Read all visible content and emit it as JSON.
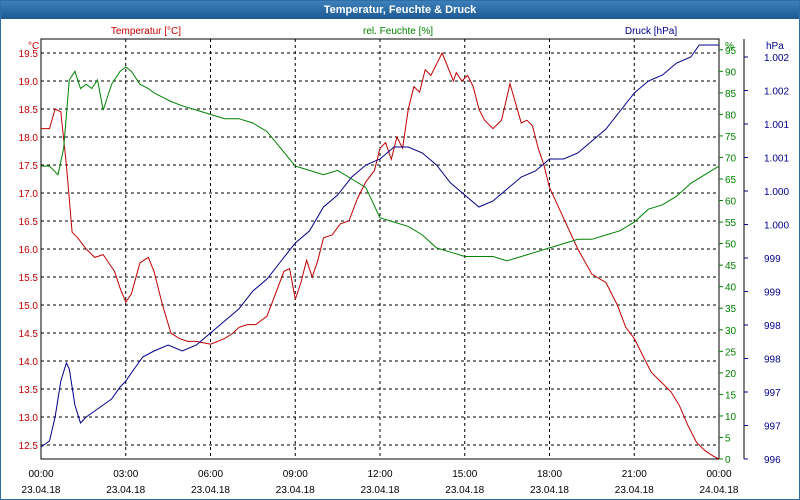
{
  "window": {
    "title": "Temperatur, Feuchte & Druck"
  },
  "colors": {
    "temperature": "#c00000",
    "humidity": "#008000",
    "pressure": "#00008b",
    "grid": "#000000",
    "titlebar": "#1e5a94"
  },
  "chart_data": {
    "type": "line",
    "title": "Temperatur, Feuchte & Druck",
    "grid": true,
    "x_ticks": [
      {
        "time": "00:00",
        "date": "23.04.18"
      },
      {
        "time": "03:00",
        "date": "23.04.18"
      },
      {
        "time": "06:00",
        "date": "23.04.18"
      },
      {
        "time": "09:00",
        "date": "23.04.18"
      },
      {
        "time": "12:00",
        "date": "23.04.18"
      },
      {
        "time": "15:00",
        "date": "23.04.18"
      },
      {
        "time": "18:00",
        "date": "23.04.18"
      },
      {
        "time": "21:00",
        "date": "23.04.18"
      },
      {
        "time": "00:00",
        "date": "24.04.18"
      }
    ],
    "x_range_hours": [
      0,
      24
    ],
    "axes": {
      "temperature": {
        "unit": "°C",
        "label": "Temperatur [°C]",
        "ylim": [
          12.25,
          19.75
        ],
        "ticks": [
          "12.5",
          "13.0",
          "13.5",
          "14.0",
          "14.5",
          "15.0",
          "15.5",
          "16.0",
          "16.5",
          "17.0",
          "17.5",
          "18.0",
          "18.5",
          "19.0",
          "19.5"
        ]
      },
      "humidity": {
        "unit": "%",
        "label": "rel. Feuchte [%]",
        "ylim": [
          0,
          97.5
        ],
        "ticks": [
          "0",
          "5",
          "10",
          "15",
          "20",
          "25",
          "30",
          "35",
          "40",
          "45",
          "50",
          "55",
          "60",
          "65",
          "70",
          "75",
          "80",
          "85",
          "90",
          "95"
        ]
      },
      "pressure": {
        "unit": "hPa",
        "label": "Druck [hPa]",
        "ylim": [
          996,
          1003
        ],
        "ticks": [
          "996",
          "997",
          "997",
          "998",
          "998",
          "999",
          "999",
          "1.000",
          "1.000",
          "1.001",
          "1.001",
          "1.002",
          "1.002"
        ]
      }
    },
    "series": [
      {
        "name": "Temperatur [°C]",
        "axis": "temperature",
        "x": [
          0,
          0.3,
          0.5,
          0.7,
          0.9,
          1.1,
          1.3,
          1.6,
          1.9,
          2.2,
          2.4,
          2.6,
          2.8,
          3.0,
          3.2,
          3.5,
          3.8,
          4.0,
          4.3,
          4.6,
          4.9,
          5.2,
          5.5,
          6.0,
          6.5,
          6.8,
          7.0,
          7.3,
          7.6,
          8.0,
          8.3,
          8.6,
          8.8,
          9.0,
          9.2,
          9.4,
          9.6,
          9.8,
          10.0,
          10.3,
          10.6,
          10.9,
          11.2,
          11.5,
          11.8,
          12.0,
          12.2,
          12.4,
          12.6,
          12.8,
          13.0,
          13.2,
          13.4,
          13.6,
          13.8,
          14.0,
          14.2,
          14.4,
          14.6,
          14.7,
          14.9,
          15.1,
          15.3,
          15.5,
          15.7,
          16.0,
          16.3,
          16.6,
          16.8,
          17.0,
          17.2,
          17.4,
          17.6,
          17.8,
          18.0,
          18.5,
          19.0,
          19.5,
          20.0,
          20.4,
          20.7,
          21.0,
          21.3,
          21.6,
          22.0,
          22.3,
          22.6,
          22.9,
          23.2,
          23.5,
          23.8,
          24.0
        ],
        "y": [
          18.15,
          18.15,
          18.5,
          18.45,
          17.5,
          16.3,
          16.2,
          16.0,
          15.85,
          15.9,
          15.75,
          15.6,
          15.3,
          15.05,
          15.2,
          15.75,
          15.85,
          15.6,
          15.0,
          14.5,
          14.4,
          14.35,
          14.35,
          14.3,
          14.4,
          14.5,
          14.6,
          14.65,
          14.65,
          14.8,
          15.2,
          15.6,
          15.65,
          15.1,
          15.4,
          15.8,
          15.5,
          15.8,
          16.2,
          16.25,
          16.45,
          16.5,
          16.9,
          17.2,
          17.4,
          17.8,
          17.9,
          17.6,
          18.0,
          17.8,
          18.5,
          18.9,
          18.8,
          19.2,
          19.1,
          19.3,
          19.5,
          19.25,
          19.0,
          19.15,
          19.0,
          19.1,
          18.9,
          18.5,
          18.3,
          18.15,
          18.3,
          18.95,
          18.6,
          18.25,
          18.3,
          18.2,
          17.8,
          17.5,
          17.1,
          16.55,
          16.0,
          15.55,
          15.4,
          15.0,
          14.6,
          14.4,
          14.1,
          13.8,
          13.6,
          13.45,
          13.2,
          12.85,
          12.55,
          12.4,
          12.3,
          12.25
        ]
      },
      {
        "name": "rel. Feuchte [%]",
        "axis": "humidity",
        "x": [
          0,
          0.3,
          0.6,
          0.8,
          1.0,
          1.2,
          1.4,
          1.6,
          1.8,
          2.0,
          2.2,
          2.5,
          2.8,
          3.0,
          3.2,
          3.5,
          3.8,
          4.0,
          4.3,
          4.6,
          5.0,
          5.5,
          6.0,
          6.5,
          7.0,
          7.5,
          8.0,
          8.5,
          9.0,
          9.5,
          10.0,
          10.5,
          11.0,
          11.5,
          12.0,
          12.5,
          13.0,
          13.5,
          14.0,
          14.5,
          15.0,
          15.5,
          16.0,
          16.5,
          17.0,
          17.5,
          18.0,
          18.5,
          19.0,
          19.5,
          20.0,
          20.5,
          21.0,
          21.5,
          22.0,
          22.5,
          23.0,
          23.5,
          24.0
        ],
        "y": [
          68,
          68,
          66,
          72,
          88,
          90,
          86,
          87,
          86,
          88,
          81,
          87,
          90,
          91,
          90,
          87,
          86,
          85,
          84,
          83,
          82,
          81,
          80,
          79,
          79,
          78,
          76,
          72,
          68,
          67,
          66,
          67,
          65,
          63,
          56,
          55,
          54,
          52,
          49,
          48,
          47,
          47,
          47,
          46,
          47,
          48,
          49,
          50,
          51,
          51,
          52,
          53,
          55,
          58,
          59,
          61,
          64,
          66,
          68
        ]
      },
      {
        "name": "Druck [hPa]",
        "axis": "pressure",
        "x": [
          0,
          0.3,
          0.5,
          0.7,
          0.9,
          1.0,
          1.1,
          1.2,
          1.4,
          1.6,
          1.9,
          2.2,
          2.5,
          2.8,
          3.0,
          3.3,
          3.6,
          4.0,
          4.5,
          5.0,
          5.5,
          6.0,
          6.5,
          7.0,
          7.5,
          8.0,
          8.5,
          9.0,
          9.5,
          10.0,
          10.5,
          11.0,
          11.5,
          12.0,
          12.5,
          13.0,
          13.5,
          14.0,
          14.5,
          15.0,
          15.5,
          16.0,
          16.5,
          17.0,
          17.5,
          18.0,
          18.5,
          19.0,
          19.5,
          20.0,
          20.5,
          21.0,
          21.5,
          22.0,
          22.5,
          23.0,
          23.3,
          23.6,
          24.0
        ],
        "y": [
          996.2,
          996.3,
          996.7,
          997.3,
          997.6,
          997.5,
          997.2,
          996.9,
          996.6,
          996.7,
          996.8,
          996.9,
          997.0,
          997.2,
          997.3,
          997.5,
          997.7,
          997.8,
          997.9,
          997.8,
          997.9,
          998.1,
          998.3,
          998.5,
          998.8,
          999.0,
          999.3,
          999.6,
          999.8,
          1000.2,
          1000.4,
          1000.7,
          1000.9,
          1001.0,
          1001.2,
          1001.2,
          1001.1,
          1000.9,
          1000.6,
          1000.4,
          1000.2,
          1000.3,
          1000.5,
          1000.7,
          1000.8,
          1001.0,
          1001.0,
          1001.1,
          1001.3,
          1001.5,
          1001.8,
          1002.1,
          1002.3,
          1002.4,
          1002.6,
          1002.7,
          1002.9,
          1002.9,
          1002.9
        ]
      }
    ]
  }
}
